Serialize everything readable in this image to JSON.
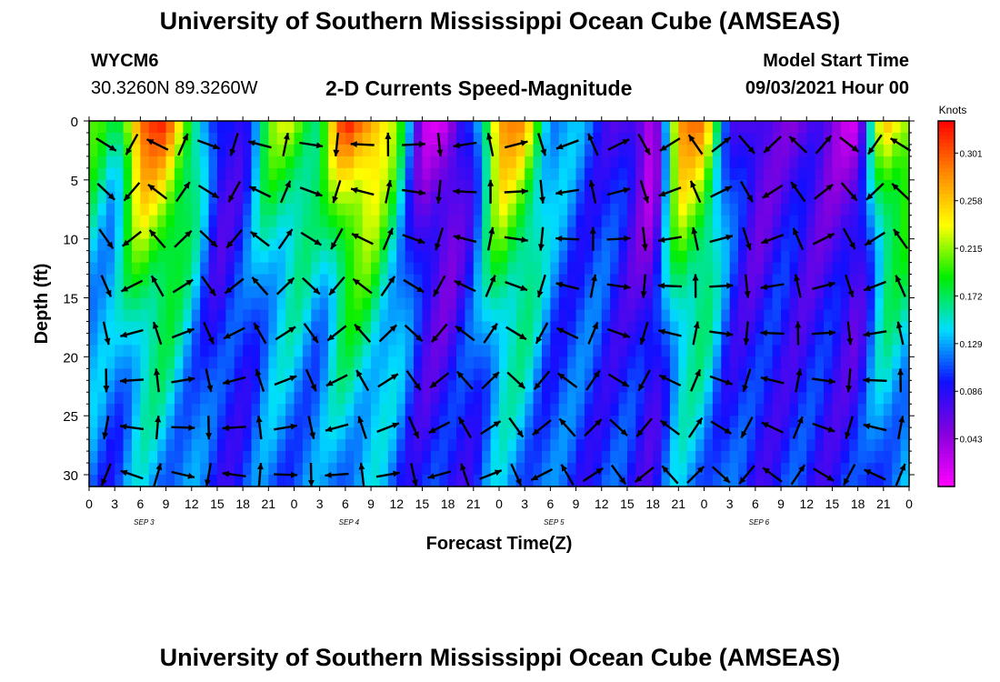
{
  "header": {
    "title": "University of Southern Mississippi Ocean Cube (AMSEAS)",
    "station_id": "WYCM6",
    "station_location": "30.3260N  89.3260W",
    "plot_title": "2-D Currents Speed-Magnitude",
    "model_start_label": "Model Start Time",
    "model_start_value": "09/03/2021 Hour 00"
  },
  "footer": {
    "title": "University of Southern Mississippi Ocean Cube (AMSEAS)"
  },
  "chart_data": {
    "type": "heatmap",
    "xlabel": "Forecast Time(Z)",
    "ylabel": "Depth (ft)",
    "x_ticks": [
      "0",
      "3",
      "6",
      "9",
      "12",
      "15",
      "18",
      "21",
      "0",
      "3",
      "6",
      "9",
      "12",
      "15",
      "18",
      "21",
      "0",
      "3",
      "6",
      "9",
      "12",
      "15",
      "18",
      "21",
      "0",
      "3",
      "6",
      "9",
      "12",
      "15",
      "18",
      "21",
      "0"
    ],
    "day_labels": [
      "SEP 3",
      "SEP 4",
      "SEP 5",
      "SEP 6"
    ],
    "y_ticks": [
      0,
      5,
      10,
      15,
      20,
      25,
      30
    ],
    "ylim": [
      0,
      31
    ],
    "x_hours": [
      0,
      96
    ],
    "colorbar": {
      "title": "Knots",
      "ticks": [
        "0.301",
        "0.258",
        "0.215",
        "0.172",
        "0.129",
        "0.086",
        "0.043"
      ],
      "range": [
        0,
        0.33
      ],
      "colors": [
        "#ff00ff",
        "#8800dd",
        "#1010ff",
        "#00ddff",
        "#00ee00",
        "#ffff00",
        "#ff8800",
        "#ff0000"
      ]
    },
    "surface_speed_by_hour": [
      {
        "hour": 0,
        "speed": 0.2
      },
      {
        "hour": 3,
        "speed": 0.16
      },
      {
        "hour": 6,
        "speed": 0.31
      },
      {
        "hour": 9,
        "speed": 0.3
      },
      {
        "hour": 12,
        "speed": 0.2
      },
      {
        "hour": 15,
        "speed": 0.07
      },
      {
        "hour": 18,
        "speed": 0.09
      },
      {
        "hour": 21,
        "speed": 0.2
      },
      {
        "hour": 24,
        "speed": 0.22
      },
      {
        "hour": 27,
        "speed": 0.18
      },
      {
        "hour": 30,
        "speed": 0.31
      },
      {
        "hour": 33,
        "speed": 0.3
      },
      {
        "hour": 36,
        "speed": 0.2
      },
      {
        "hour": 39,
        "speed": 0.04
      },
      {
        "hour": 42,
        "speed": 0.02
      },
      {
        "hour": 45,
        "speed": 0.1
      },
      {
        "hour": 48,
        "speed": 0.29
      },
      {
        "hour": 51,
        "speed": 0.26
      },
      {
        "hour": 54,
        "speed": 0.14
      },
      {
        "hour": 57,
        "speed": 0.12
      },
      {
        "hour": 60,
        "speed": 0.1
      },
      {
        "hour": 63,
        "speed": 0.07
      },
      {
        "hour": 66,
        "speed": 0.01
      },
      {
        "hour": 69,
        "speed": 0.29
      },
      {
        "hour": 72,
        "speed": 0.27
      },
      {
        "hour": 75,
        "speed": 0.1
      },
      {
        "hour": 78,
        "speed": 0.05
      },
      {
        "hour": 81,
        "speed": 0.07
      },
      {
        "hour": 84,
        "speed": 0.06
      },
      {
        "hour": 87,
        "speed": 0.05
      },
      {
        "hour": 90,
        "speed": 0.03
      },
      {
        "hour": 93,
        "speed": 0.25
      },
      {
        "hour": 96,
        "speed": 0.24
      }
    ]
  }
}
